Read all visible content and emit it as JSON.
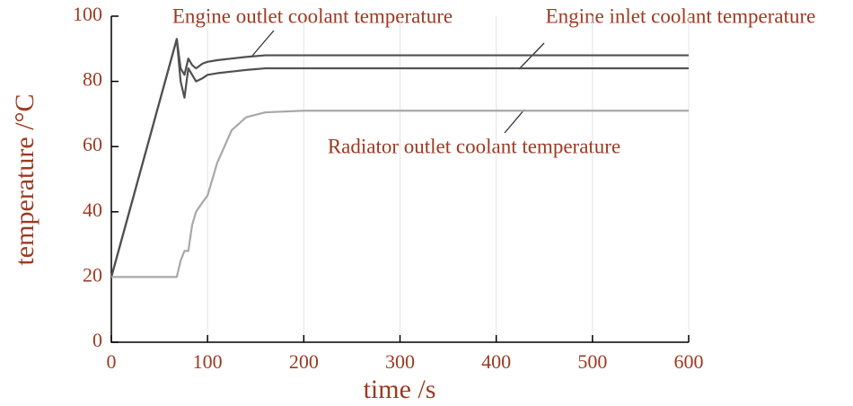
{
  "chart_data": {
    "type": "line",
    "x_label": "time /s",
    "y_label": "temperature /°C",
    "x": [
      0,
      68,
      72,
      76,
      80,
      84,
      88,
      95,
      100,
      110,
      125,
      140,
      160,
      200,
      600
    ],
    "series": [
      {
        "name": "Engine outlet coolant temperature",
        "color": "#505050",
        "values": [
          20,
          93,
          84,
          82,
          87,
          85,
          84,
          85.5,
          86,
          86.5,
          87,
          87.5,
          88,
          88,
          88
        ]
      },
      {
        "name": "Engine inlet coolant temperature",
        "color": "#505050",
        "values": [
          20,
          93,
          80,
          75,
          84,
          82,
          80,
          81,
          82,
          82.5,
          83,
          83.5,
          84,
          84,
          84
        ]
      },
      {
        "name": "Radiator outlet coolant temperature",
        "color": "#a8a8a8",
        "values": [
          20,
          20,
          25,
          28,
          28,
          36,
          40,
          43,
          45,
          55,
          65,
          69,
          70.5,
          71,
          71
        ]
      }
    ],
    "xlim": [
      0,
      600
    ],
    "xticks": [
      0,
      100,
      200,
      300,
      400,
      500,
      600
    ],
    "ylim": [
      0,
      100
    ],
    "yticks": [
      0,
      20,
      40,
      60,
      80,
      100
    ],
    "grid": "x",
    "text_color": "#9c3a22"
  }
}
